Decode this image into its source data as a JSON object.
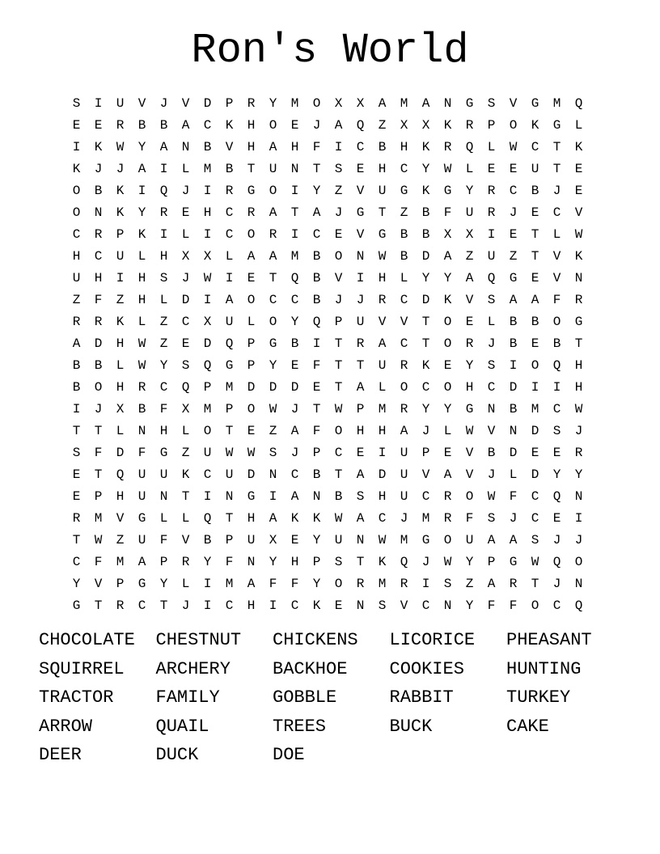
{
  "title": "Ron's World",
  "colors": {
    "background": "#ffffff",
    "text": "#000000"
  },
  "grid": {
    "rows_count": 24,
    "cols_count": 24,
    "rows": [
      "SIUVJVDPRYMOXXAMANGSVGMQ",
      "EERBBACKHOEJAQZXXKRPOKGL",
      "IKWYANBVHAHFICBHKRQLWCTK",
      "KJJAILMBTUNTSEHCYWLEEUTE",
      "OBKIQJIRGOIYZVUGKGYRCBJE",
      "ONKYREHCRATAJGTZBFURJECV",
      "CRPKILICORICEVGBBXXIETLW",
      "HCULHXXLAAMBONWBDAZUZTVK",
      "UHIHSJWIETQBVIHLYYAQGEVN",
      "ZFZHLDIAOCCBJJRCDKVSAAFR",
      "RRKLZCXULOYQPUVVTOELBBOG",
      "ADHWZEDQPGBITRACTORJBEBT",
      "BBLWYSQGPYEFTTURKEYSIOQH",
      "BOHRCQPMDDDETALOCOHCDIIH",
      "IJXBFXMPOWJTWPMRYYGNBMCW",
      "TTLNHLOTEZAFOHHAJLWVNDSJ",
      "SFDFGZUWWSJPCEIUPEVBDEER",
      "ETQUUKCUDNCBTADUVAVJLDYY",
      "EPHUNTINGIANBSHUCROWFCQN",
      "RMVGLLQTHAKKWACJMRFSJCEI",
      "TWZUFVBPUXEYUNWMGOUAASJJ",
      "CFMAPRYFNYHPSTKQJWYPGWQO",
      "YVPGYLIMAFFYORMRISZARTJN",
      "GTRCTJICHICKENSVCNYFFOCQ"
    ]
  },
  "word_list": {
    "columns_count": 5,
    "words": [
      "CHOCOLATE",
      "CHESTNUT",
      "CHICKENS",
      "LICORICE",
      "PHEASANT",
      "SQUIRREL",
      "ARCHERY",
      "BACKHOE",
      "COOKIES",
      "HUNTING",
      "TRACTOR",
      "FAMILY",
      "GOBBLE",
      "RABBIT",
      "TURKEY",
      "ARROW",
      "QUAIL",
      "TREES",
      "BUCK",
      "CAKE",
      "DEER",
      "DUCK",
      "DOE"
    ]
  }
}
